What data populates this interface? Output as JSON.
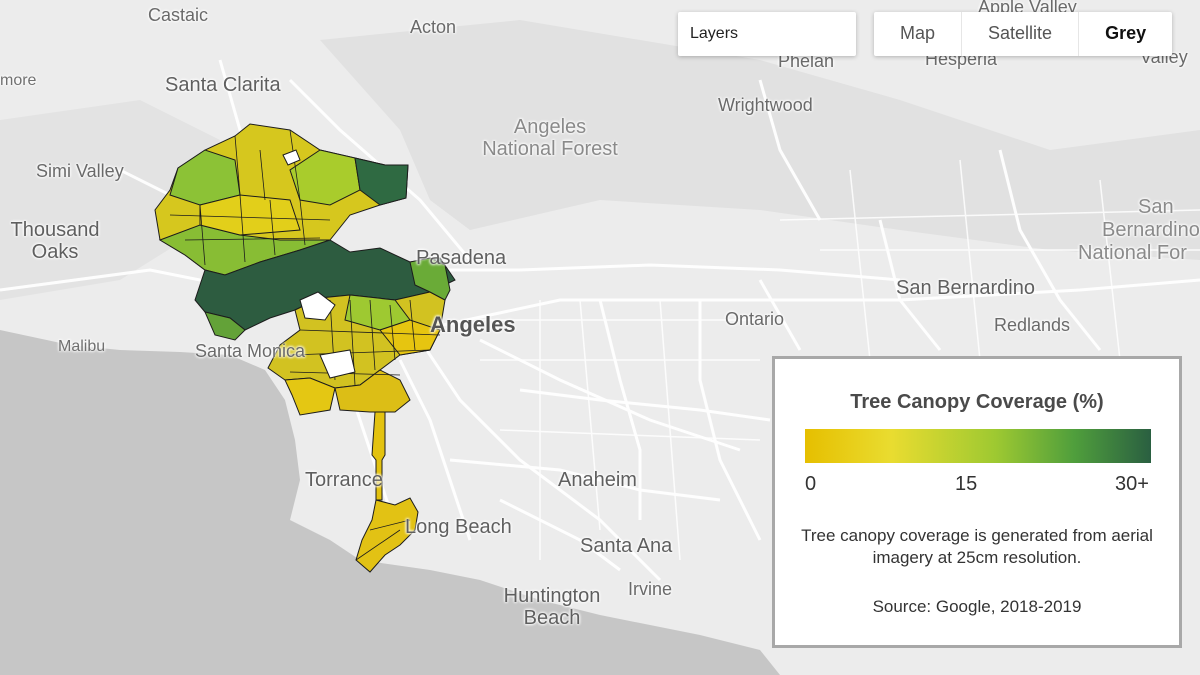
{
  "controls": {
    "layers_label": "Layers",
    "map_types": [
      "Map",
      "Satellite",
      "Grey"
    ],
    "active_map_type": "Grey"
  },
  "places": {
    "castaic": "Castaic",
    "acton": "Acton",
    "apple_valley": "Apple Valley",
    "phelan": "Phelan",
    "hesperia": "Hesperia",
    "valley": "Valley",
    "more": "more",
    "santa_clarita": "Santa Clarita",
    "wrightwood": "Wrightwood",
    "angeles_1": "Angeles",
    "angeles_2": "National Forest",
    "simi_valley": "Simi Valley",
    "thousand_1": "Thousand",
    "thousand_2": "Oaks",
    "san_b_1": "San",
    "san_b_2": "Bernardino",
    "san_b_3": "National For",
    "pasadena": "Pasadena",
    "san_bernardino": "San Bernardino",
    "los_angeles": "Angeles",
    "ontario": "Ontario",
    "redlands": "Redlands",
    "malibu": "Malibu",
    "santa_monica": "Santa Monica",
    "torrance": "Torrance",
    "anaheim": "Anaheim",
    "long_beach": "Long Beach",
    "santa_ana": "Santa Ana",
    "huntington_1": "Huntington",
    "huntington_2": "Beach",
    "irvine": "Irvine"
  },
  "legend": {
    "title": "Tree Canopy Coverage (%)",
    "scale_colors": [
      "#e6bf00",
      "#e9dc30",
      "#9ec931",
      "#4f9e3c",
      "#2a5f41"
    ],
    "ticks": [
      "0",
      "15",
      "30+"
    ],
    "description": "Tree canopy coverage is generated from aerial imagery at 25cm resolution.",
    "source": "Source: Google, 2018-2019"
  }
}
